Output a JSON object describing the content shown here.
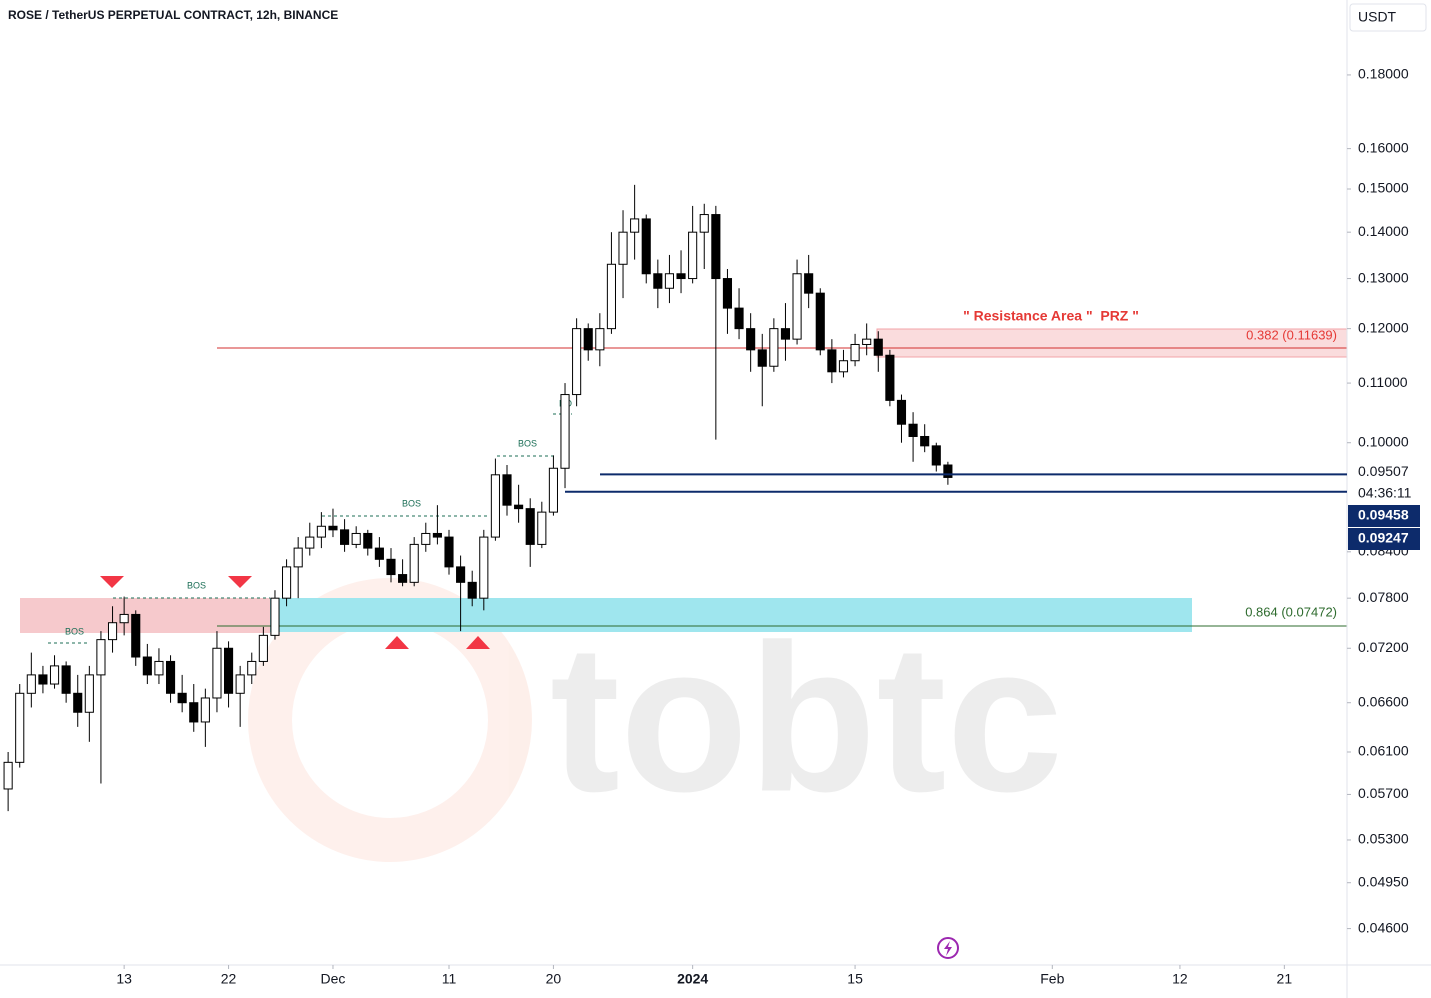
{
  "chart_data": {
    "type": "candlestick",
    "title": "ROSE / TetherUS PERPETUAL CONTRACT, 12h, BINANCE",
    "currency": "USDT",
    "log_scale": true,
    "up_color": "#ffffff",
    "down_color": "#000000",
    "ylim": [
      0.0434,
      0.2029
    ],
    "yticks": [
      {
        "value": 0.18,
        "label": "0.18000"
      },
      {
        "value": 0.16,
        "label": "0.16000"
      },
      {
        "value": 0.15,
        "label": "0.15000"
      },
      {
        "value": 0.14,
        "label": "0.14000"
      },
      {
        "value": 0.13,
        "label": "0.13000"
      },
      {
        "value": 0.12,
        "label": "0.12000"
      },
      {
        "value": 0.11,
        "label": "0.11000"
      },
      {
        "value": 0.1,
        "label": "0.10000"
      },
      {
        "value": 0.084,
        "label": "0.08400"
      },
      {
        "value": 0.078,
        "label": "0.07800"
      },
      {
        "value": 0.072,
        "label": "0.07200"
      },
      {
        "value": 0.066,
        "label": "0.06600"
      },
      {
        "value": 0.061,
        "label": "0.06100"
      },
      {
        "value": 0.057,
        "label": "0.05700"
      },
      {
        "value": 0.053,
        "label": "0.05300"
      },
      {
        "value": 0.0495,
        "label": "0.04950"
      },
      {
        "value": 0.046,
        "label": "0.04600"
      }
    ],
    "xlim": [
      -0.7,
      115.4
    ],
    "xticks": [
      {
        "value": 10,
        "label": "13"
      },
      {
        "value": 19,
        "label": "22"
      },
      {
        "value": 28,
        "label": "Dec"
      },
      {
        "value": 38,
        "label": "11"
      },
      {
        "value": 47,
        "label": "20"
      },
      {
        "value": 59,
        "label": "2024"
      },
      {
        "value": 73,
        "label": "15"
      },
      {
        "value": 90,
        "label": "Feb"
      },
      {
        "value": 101,
        "label": "12"
      },
      {
        "value": 110,
        "label": "21"
      }
    ],
    "open": [
      0.0575,
      0.06,
      0.067,
      0.069,
      0.068,
      0.07,
      0.067,
      0.065,
      0.069,
      0.073,
      0.075,
      0.076,
      0.071,
      0.069,
      0.0705,
      0.067,
      0.066,
      0.064,
      0.0665,
      0.072,
      0.067,
      0.069,
      0.0705,
      0.0735,
      0.078,
      0.082,
      0.0845,
      0.086,
      0.0875,
      0.087,
      0.085,
      0.0865,
      0.0845,
      0.083,
      0.081,
      0.08,
      0.085,
      0.0865,
      0.086,
      0.082,
      0.08,
      0.078,
      0.086,
      0.095,
      0.0905,
      0.09,
      0.085,
      0.0895,
      0.096,
      0.108,
      0.12,
      0.116,
      0.12,
      0.133,
      0.14,
      0.143,
      0.131,
      0.128,
      0.131,
      0.13,
      0.14,
      0.144,
      0.13,
      0.124,
      0.12,
      0.116,
      0.113,
      0.12,
      0.118,
      0.131,
      0.127,
      0.116,
      0.112,
      0.114,
      0.117,
      0.118,
      0.115,
      0.107,
      0.103,
      0.101,
      0.0995,
      0.0965
    ],
    "high": [
      0.061,
      0.068,
      0.0715,
      0.07,
      0.0712,
      0.0705,
      0.069,
      0.07,
      0.074,
      0.077,
      0.0782,
      0.0765,
      0.0725,
      0.072,
      0.0712,
      0.069,
      0.068,
      0.0675,
      0.074,
      0.0728,
      0.07,
      0.0715,
      0.0745,
      0.079,
      0.083,
      0.086,
      0.088,
      0.0895,
      0.09,
      0.0885,
      0.0875,
      0.087,
      0.086,
      0.0845,
      0.083,
      0.086,
      0.088,
      0.0905,
      0.087,
      0.0835,
      0.0815,
      0.087,
      0.0975,
      0.0965,
      0.0935,
      0.0915,
      0.091,
      0.098,
      0.11,
      0.122,
      0.121,
      0.123,
      0.14,
      0.145,
      0.151,
      0.144,
      0.134,
      0.135,
      0.136,
      0.146,
      0.1465,
      0.146,
      0.132,
      0.128,
      0.123,
      0.119,
      0.122,
      0.125,
      0.134,
      0.135,
      0.128,
      0.118,
      0.116,
      0.119,
      0.121,
      0.1195,
      0.116,
      0.108,
      0.105,
      0.103,
      0.1,
      0.097
    ],
    "low": [
      0.0555,
      0.0595,
      0.0655,
      0.067,
      0.0675,
      0.066,
      0.0635,
      0.062,
      0.058,
      0.0715,
      0.0735,
      0.07,
      0.068,
      0.068,
      0.066,
      0.065,
      0.063,
      0.0615,
      0.065,
      0.0655,
      0.0635,
      0.068,
      0.07,
      0.073,
      0.077,
      0.078,
      0.0835,
      0.0845,
      0.086,
      0.084,
      0.0845,
      0.0835,
      0.082,
      0.08,
      0.0795,
      0.0795,
      0.084,
      0.085,
      0.081,
      0.074,
      0.077,
      0.0765,
      0.0855,
      0.089,
      0.088,
      0.082,
      0.0845,
      0.089,
      0.093,
      0.106,
      0.114,
      0.113,
      0.119,
      0.126,
      0.134,
      0.129,
      0.124,
      0.125,
      0.127,
      0.129,
      0.132,
      0.1005,
      0.119,
      0.118,
      0.112,
      0.106,
      0.112,
      0.114,
      0.117,
      0.124,
      0.115,
      0.11,
      0.111,
      0.113,
      0.115,
      0.112,
      0.106,
      0.1,
      0.097,
      0.0985,
      0.0955,
      0.0935
    ],
    "close": [
      0.06,
      0.067,
      0.069,
      0.068,
      0.07,
      0.067,
      0.065,
      0.069,
      0.073,
      0.075,
      0.076,
      0.071,
      0.069,
      0.0705,
      0.067,
      0.066,
      0.064,
      0.0665,
      0.072,
      0.067,
      0.069,
      0.0705,
      0.0735,
      0.078,
      0.082,
      0.0845,
      0.086,
      0.0875,
      0.087,
      0.085,
      0.0865,
      0.0845,
      0.083,
      0.081,
      0.08,
      0.085,
      0.0865,
      0.086,
      0.082,
      0.08,
      0.078,
      0.086,
      0.095,
      0.0905,
      0.09,
      0.085,
      0.0895,
      0.096,
      0.108,
      0.12,
      0.116,
      0.12,
      0.133,
      0.14,
      0.143,
      0.131,
      0.128,
      0.131,
      0.13,
      0.14,
      0.144,
      0.13,
      0.124,
      0.12,
      0.116,
      0.113,
      0.12,
      0.118,
      0.131,
      0.127,
      0.116,
      0.112,
      0.114,
      0.117,
      0.118,
      0.115,
      0.107,
      0.103,
      0.101,
      0.0995,
      0.0965,
      0.0946
    ],
    "price_labels": [
      {
        "value": 0.09507,
        "label": "0.09507"
      },
      {
        "value": 0.09458,
        "label": "0.09458"
      },
      {
        "value": 0.09247,
        "label": "0.09247"
      }
    ],
    "countdown": "04:36:11",
    "annotations": {
      "resistance": "\" Resistance Area \"  PRZ \"",
      "fib_382": "0.382 (0.11639)",
      "fib_864": "0.864 (0.07472)",
      "bos": [
        "BOS",
        "BOS",
        "BOS",
        "BOS",
        "BO"
      ]
    },
    "watermark": "tobtc"
  }
}
